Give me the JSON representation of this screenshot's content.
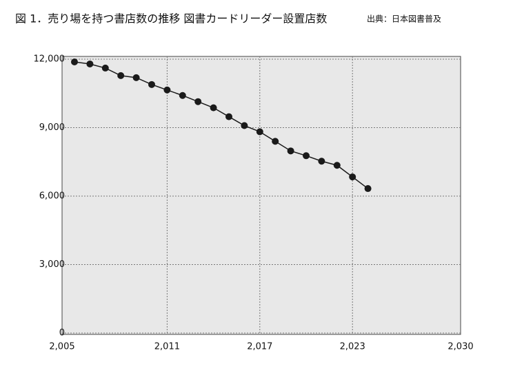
{
  "chart_data": {
    "type": "line",
    "title": "図 1．売り場を持つ書店数の推移 図書カードリーダー設置店数",
    "source": "出典：日本図書普及",
    "x": [
      2005,
      2006,
      2007,
      2008,
      2009,
      2010,
      2011,
      2012,
      2013,
      2014,
      2015,
      2016,
      2017,
      2018,
      2019,
      2020,
      2021,
      2022,
      2023,
      2024
    ],
    "series": [
      {
        "color": "#1a1a1a",
        "values": [
          11880,
          11790,
          11610,
          11280,
          11190,
          10890,
          10650,
          10410,
          10140,
          9870,
          9480,
          9090,
          8820,
          8400,
          7980,
          7770,
          7530,
          7350,
          6840,
          6330
        ]
      }
    ],
    "xlim": [
      2005,
      2030
    ],
    "xticks": [
      {
        "value": 2005,
        "label": "2,005"
      },
      {
        "value": 2011,
        "label": "2,011"
      },
      {
        "value": 2017,
        "label": "2,017"
      },
      {
        "value": 2023,
        "label": "2,023"
      },
      {
        "value": 2030,
        "label": "2,030"
      }
    ],
    "ylim": [
      0,
      12000
    ],
    "yticks": [
      0,
      {
        "value": 3000,
        "label": "3,000"
      },
      {
        "value": 6000,
        "label": "6,000"
      },
      {
        "value": 9000,
        "label": "9,000"
      },
      {
        "value": 12000,
        "label": "12,000"
      }
    ],
    "grid": true,
    "plot_background": "#e8e8e8"
  }
}
